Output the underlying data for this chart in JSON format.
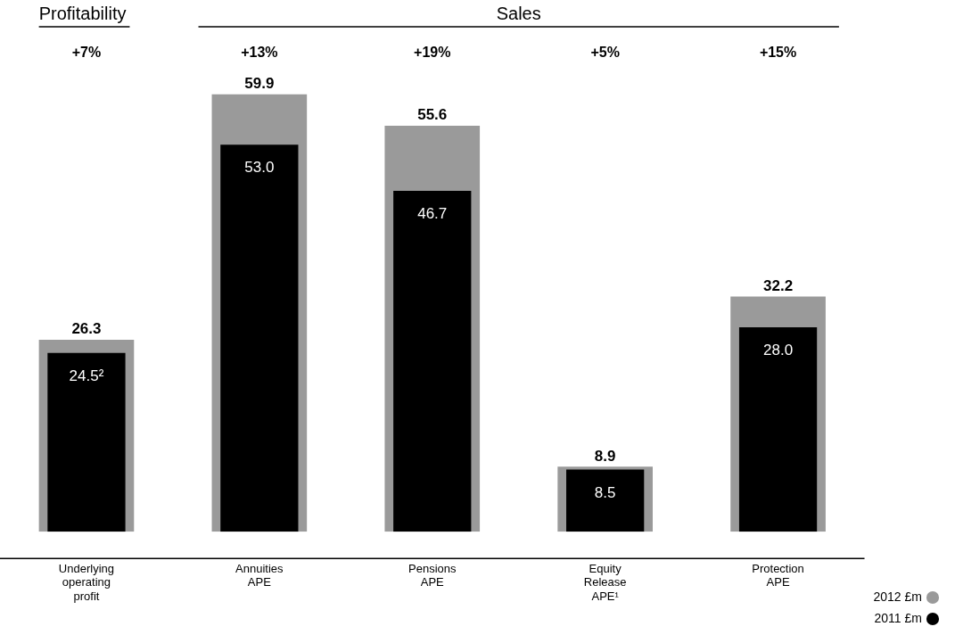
{
  "chart_data": {
    "type": "bar",
    "categories": [
      "Underlying operating profit",
      "Annuities APE",
      "Pensions APE",
      "Equity Release APE¹",
      "Protection APE"
    ],
    "series": [
      {
        "name": "2012 £m",
        "color": "#9a9a9a",
        "values": [
          26.3,
          59.9,
          55.6,
          8.9,
          32.2
        ],
        "value_labels": [
          "26.3",
          "59.9",
          "55.6",
          "8.9",
          "32.2"
        ]
      },
      {
        "name": "2011 £m",
        "color": "#000000",
        "values": [
          24.5,
          53.0,
          46.7,
          8.5,
          28.0
        ],
        "value_labels": [
          "24.5²",
          "53.0",
          "46.7",
          "8.5",
          "28.0"
        ]
      }
    ],
    "annotations": [
      "Profitability",
      "Sales",
      "+7%",
      "+13%",
      "+19%",
      "+5%",
      "+15%"
    ],
    "legend": "bottom right",
    "grid": false
  }
}
